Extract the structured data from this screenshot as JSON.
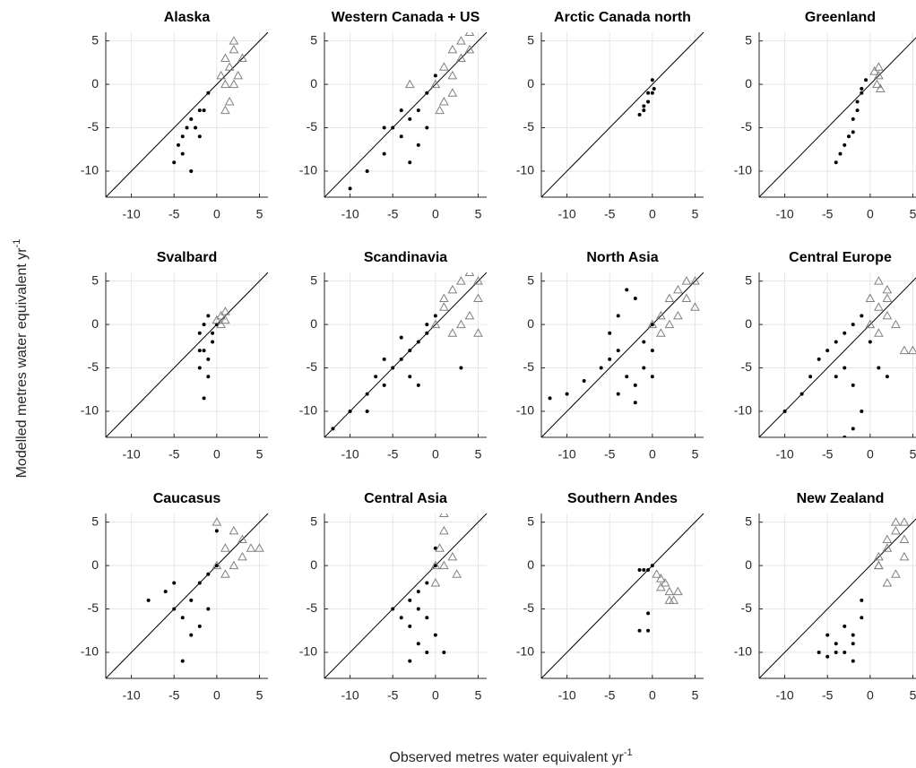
{
  "x_label": "Observed metres water equivalent yr",
  "x_label_sup": "-1",
  "y_label": "Modelled metres water equivalent yr",
  "y_label_sup": "-1",
  "chart_data": [
    {
      "type": "scatter",
      "title": "Alaska",
      "xlim": [
        -13,
        6
      ],
      "ylim": [
        -13,
        6
      ],
      "xticks": [
        -10,
        -5,
        0,
        5
      ],
      "yticks": [
        -10,
        -5,
        0,
        5
      ],
      "grid": true,
      "identity_line": true,
      "series": [
        {
          "color": "#000000",
          "marker": "dot",
          "x": [
            -5,
            -4.5,
            -4,
            -3.5,
            -3,
            -2.5,
            -2,
            -1.5,
            -1,
            -3,
            -4,
            -2
          ],
          "y": [
            -9,
            -7,
            -6,
            -5,
            -4,
            -5,
            -3,
            -3,
            -1,
            -10,
            -8,
            -6
          ]
        },
        {
          "color": "#808080",
          "marker": "triangle",
          "x": [
            1,
            1.5,
            2,
            1,
            2.5,
            1.5,
            1,
            2,
            3,
            2,
            0.5
          ],
          "y": [
            0,
            2,
            4,
            3,
            1,
            -2,
            -3,
            5,
            3,
            0,
            1
          ]
        }
      ]
    },
    {
      "type": "scatter",
      "title": "Western Canada + US",
      "xlim": [
        -13,
        6
      ],
      "ylim": [
        -13,
        6
      ],
      "xticks": [
        -10,
        -5,
        0,
        5
      ],
      "yticks": [
        -10,
        -5,
        0,
        5
      ],
      "grid": true,
      "identity_line": true,
      "series": [
        {
          "color": "#000000",
          "marker": "dot",
          "x": [
            -10,
            -8,
            -6,
            -5,
            -4,
            -3,
            -2,
            -1,
            0,
            -3,
            -2,
            -4,
            -1,
            -6
          ],
          "y": [
            -12,
            -10,
            -8,
            -5,
            -6,
            -4,
            -3,
            -1,
            1,
            -9,
            -7,
            -3,
            -5,
            -5
          ]
        },
        {
          "color": "#808080",
          "marker": "triangle",
          "x": [
            0,
            1,
            2,
            3,
            4,
            2,
            1,
            0.5,
            3,
            4,
            -3,
            2
          ],
          "y": [
            0,
            2,
            4,
            5,
            6,
            1,
            -2,
            -3,
            3,
            4,
            0,
            -1
          ]
        }
      ]
    },
    {
      "type": "scatter",
      "title": "Arctic Canada north",
      "xlim": [
        -13,
        6
      ],
      "ylim": [
        -13,
        6
      ],
      "xticks": [
        -10,
        -5,
        0,
        5
      ],
      "yticks": [
        -10,
        -5,
        0,
        5
      ],
      "grid": true,
      "identity_line": true,
      "series": [
        {
          "color": "#000000",
          "marker": "dot",
          "x": [
            -1.5,
            -1,
            -0.5,
            0,
            0,
            -0.5,
            0.2,
            -1
          ],
          "y": [
            -3.5,
            -3,
            -2,
            -1,
            0.5,
            -1,
            -0.5,
            -2.5
          ]
        }
      ]
    },
    {
      "type": "scatter",
      "title": "Greenland",
      "xlim": [
        -13,
        6
      ],
      "ylim": [
        -13,
        6
      ],
      "xticks": [
        -10,
        -5,
        0,
        5
      ],
      "yticks": [
        -10,
        -5,
        0,
        5
      ],
      "grid": true,
      "identity_line": true,
      "series": [
        {
          "color": "#000000",
          "marker": "dot",
          "x": [
            -4,
            -3.5,
            -3,
            -2.5,
            -2,
            -1.5,
            -1,
            -0.5,
            -1.5,
            -2,
            -1
          ],
          "y": [
            -9,
            -8,
            -7,
            -6,
            -5.5,
            -3,
            -1,
            0.5,
            -2,
            -4,
            -0.5
          ]
        },
        {
          "color": "#808080",
          "marker": "triangle",
          "x": [
            1,
            1,
            0.8,
            1.2,
            0.5
          ],
          "y": [
            1,
            2,
            0,
            -0.5,
            1.5
          ]
        }
      ]
    },
    {
      "type": "scatter",
      "title": "Svalbard",
      "xlim": [
        -13,
        6
      ],
      "ylim": [
        -13,
        6
      ],
      "xticks": [
        -10,
        -5,
        0,
        5
      ],
      "yticks": [
        -10,
        -5,
        0,
        5
      ],
      "grid": true,
      "identity_line": true,
      "series": [
        {
          "color": "#000000",
          "marker": "dot",
          "x": [
            -2,
            -1.5,
            -1,
            -1.5,
            -1,
            -0.5,
            -2,
            -1,
            -1.5,
            -0.5,
            -2,
            0
          ],
          "y": [
            -1,
            0,
            1,
            -3,
            -4,
            -2,
            -5,
            -6,
            -8.5,
            -1,
            -3,
            0
          ]
        },
        {
          "color": "#808080",
          "marker": "triangle",
          "x": [
            0,
            0.5,
            1,
            1,
            0.5
          ],
          "y": [
            0.5,
            1,
            1.5,
            0.5,
            0
          ]
        }
      ]
    },
    {
      "type": "scatter",
      "title": "Scandinavia",
      "xlim": [
        -13,
        6
      ],
      "ylim": [
        -13,
        6
      ],
      "xticks": [
        -10,
        -5,
        0,
        5
      ],
      "yticks": [
        -10,
        -5,
        0,
        5
      ],
      "grid": true,
      "identity_line": true,
      "series": [
        {
          "color": "#000000",
          "marker": "dot",
          "x": [
            -12,
            -10,
            -8,
            -7,
            -6,
            -5,
            -4,
            -3,
            -2,
            -1,
            -4,
            -3,
            -2,
            -6,
            -1,
            0,
            -8,
            3
          ],
          "y": [
            -12,
            -10,
            -8,
            -6,
            -7,
            -5,
            -4,
            -3,
            -2,
            -1,
            -1.5,
            -6,
            -7,
            -4,
            0,
            1,
            -10,
            -5
          ]
        },
        {
          "color": "#808080",
          "marker": "triangle",
          "x": [
            0,
            1,
            2,
            3,
            4,
            5,
            4,
            3,
            2,
            5,
            1,
            5
          ],
          "y": [
            0,
            2,
            4,
            5,
            6,
            3,
            1,
            0,
            -1,
            -1,
            3,
            5
          ]
        }
      ]
    },
    {
      "type": "scatter",
      "title": "North Asia",
      "xlim": [
        -13,
        6
      ],
      "ylim": [
        -13,
        6
      ],
      "xticks": [
        -10,
        -5,
        0,
        5
      ],
      "yticks": [
        -10,
        -5,
        0,
        5
      ],
      "grid": true,
      "identity_line": true,
      "series": [
        {
          "color": "#000000",
          "marker": "dot",
          "x": [
            -12,
            -10,
            -8,
            -6,
            -5,
            -4,
            -3,
            -2,
            -1,
            0,
            0,
            -4,
            -2,
            -4,
            -3,
            -2,
            -5,
            -1,
            0
          ],
          "y": [
            -8.5,
            -8,
            -6.5,
            -5,
            -4,
            -3,
            -6,
            -7,
            -5,
            -3,
            0,
            -8,
            -9,
            1,
            4,
            3,
            -1,
            -2,
            -6
          ]
        },
        {
          "color": "#808080",
          "marker": "triangle",
          "x": [
            0,
            1,
            2,
            3,
            4,
            5,
            3,
            2,
            4,
            5,
            1
          ],
          "y": [
            0,
            1,
            3,
            4,
            5,
            2,
            1,
            0,
            3,
            5,
            -1
          ]
        }
      ]
    },
    {
      "type": "scatter",
      "title": "Central Europe",
      "xlim": [
        -13,
        6
      ],
      "ylim": [
        -13,
        6
      ],
      "xticks": [
        -10,
        -5,
        0,
        5
      ],
      "yticks": [
        -10,
        -5,
        0,
        5
      ],
      "grid": true,
      "identity_line": true,
      "series": [
        {
          "color": "#000000",
          "marker": "dot",
          "x": [
            -10,
            -8,
            -7,
            -6,
            -5,
            -4,
            -3,
            -2,
            -1,
            -3,
            -2,
            -1,
            -3,
            -2,
            -4,
            0,
            1,
            2
          ],
          "y": [
            -10,
            -8,
            -6,
            -4,
            -3,
            -2,
            -1,
            0,
            1,
            -5,
            -7,
            -10,
            -13,
            -12,
            -6,
            -2,
            -5,
            -6
          ]
        },
        {
          "color": "#808080",
          "marker": "triangle",
          "x": [
            0,
            1,
            2,
            1,
            2,
            3,
            4,
            5,
            1,
            2,
            0
          ],
          "y": [
            0,
            2,
            3,
            5,
            1,
            0,
            -3,
            -3,
            -1,
            4,
            3
          ]
        }
      ]
    },
    {
      "type": "scatter",
      "title": "Caucasus",
      "xlim": [
        -13,
        6
      ],
      "ylim": [
        -13,
        6
      ],
      "xticks": [
        -10,
        -5,
        0,
        5
      ],
      "yticks": [
        -10,
        -5,
        0,
        5
      ],
      "grid": true,
      "identity_line": true,
      "series": [
        {
          "color": "#000000",
          "marker": "dot",
          "x": [
            -8,
            -6,
            -5,
            -4,
            -3,
            -2,
            -1,
            0,
            0,
            -3,
            -2,
            -4,
            -1,
            -5
          ],
          "y": [
            -4,
            -3,
            -5,
            -6,
            -4,
            -2,
            -1,
            0,
            4,
            -8,
            -7,
            -11,
            -5,
            -2
          ]
        },
        {
          "color": "#808080",
          "marker": "triangle",
          "x": [
            0,
            1,
            2,
            3,
            4,
            2,
            1,
            0,
            3,
            5
          ],
          "y": [
            0,
            2,
            4,
            3,
            2,
            0,
            -1,
            5,
            1,
            2
          ]
        }
      ]
    },
    {
      "type": "scatter",
      "title": "Central Asia",
      "xlim": [
        -13,
        6
      ],
      "ylim": [
        -13,
        6
      ],
      "xticks": [
        -10,
        -5,
        0,
        5
      ],
      "yticks": [
        -10,
        -5,
        0,
        5
      ],
      "grid": true,
      "identity_line": true,
      "series": [
        {
          "color": "#000000",
          "marker": "dot",
          "x": [
            -5,
            -4,
            -3,
            -2,
            -1,
            0,
            0,
            -1,
            -2,
            -3,
            -1,
            1,
            0,
            -3,
            -2
          ],
          "y": [
            -5,
            -6,
            -4,
            -3,
            -2,
            0,
            2,
            -6,
            -9,
            -11,
            -10,
            -10,
            -8,
            -7,
            -5
          ]
        },
        {
          "color": "#808080",
          "marker": "triangle",
          "x": [
            0,
            0.5,
            1,
            1,
            2,
            2.5,
            0,
            1
          ],
          "y": [
            0,
            2,
            4,
            6,
            1,
            -1,
            -2,
            0
          ]
        }
      ]
    },
    {
      "type": "scatter",
      "title": "Southern Andes",
      "xlim": [
        -13,
        6
      ],
      "ylim": [
        -13,
        6
      ],
      "xticks": [
        -10,
        -5,
        0,
        5
      ],
      "yticks": [
        -10,
        -5,
        0,
        5
      ],
      "grid": true,
      "identity_line": true,
      "series": [
        {
          "color": "#000000",
          "marker": "dot",
          "x": [
            -1.5,
            -1,
            0,
            -0.5,
            -1.5,
            -0.5,
            -0.5
          ],
          "y": [
            -0.5,
            -0.5,
            0,
            -0.5,
            -7.5,
            -7.5,
            -5.5
          ]
        },
        {
          "color": "#808080",
          "marker": "triangle",
          "x": [
            0.5,
            1,
            1.5,
            2,
            2.5,
            3,
            1,
            2
          ],
          "y": [
            -1,
            -1.5,
            -2,
            -3,
            -4,
            -3,
            -2.5,
            -4
          ]
        }
      ]
    },
    {
      "type": "scatter",
      "title": "New Zealand",
      "xlim": [
        -13,
        6
      ],
      "ylim": [
        -13,
        6
      ],
      "xticks": [
        -10,
        -5,
        0,
        5
      ],
      "yticks": [
        -10,
        -5,
        0,
        5
      ],
      "grid": true,
      "identity_line": true,
      "series": [
        {
          "color": "#000000",
          "marker": "dot",
          "x": [
            -6,
            -5,
            -4,
            -3,
            -2,
            -2,
            -1,
            -1,
            -3,
            -4,
            -2,
            -5
          ],
          "y": [
            -10,
            -8,
            -9,
            -7,
            -9,
            -11,
            -6,
            -4,
            -10,
            -10,
            -8,
            -10.5
          ]
        },
        {
          "color": "#808080",
          "marker": "triangle",
          "x": [
            1,
            2,
            3,
            4,
            1,
            2,
            3,
            4,
            2,
            3,
            1,
            4
          ],
          "y": [
            0,
            2,
            4,
            5,
            0,
            -2,
            -1,
            1,
            3,
            5,
            1,
            3
          ]
        }
      ]
    }
  ]
}
